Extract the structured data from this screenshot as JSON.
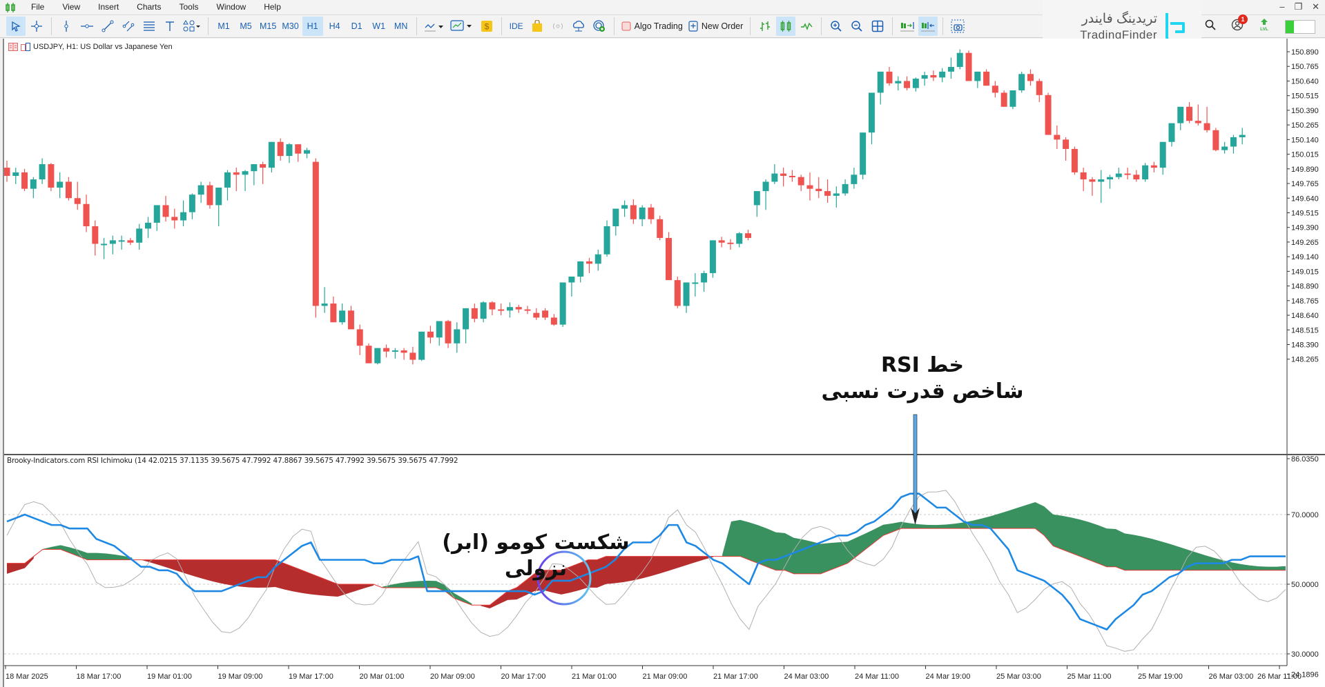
{
  "menu": {
    "items": [
      "File",
      "View",
      "Insert",
      "Charts",
      "Tools",
      "Window",
      "Help"
    ]
  },
  "toolbar": {
    "timeframes": [
      "M1",
      "M5",
      "M15",
      "M30",
      "H1",
      "H4",
      "D1",
      "W1",
      "MN"
    ],
    "active_timeframe": "H1",
    "ide_label": "IDE",
    "algo_trading_label": "Algo Trading",
    "new_order_label": "New Order",
    "notification_count": "1",
    "lvl_label": "LVL"
  },
  "logo": {
    "fa": "تریدینگ فایندر",
    "en": "TradingFinder"
  },
  "chart": {
    "symbol_label": "USDJPY, H1:  US Dollar vs Japanese Yen",
    "bull_color": "#26a69a",
    "bear_color": "#ef5350",
    "price_axis": [
      "150.890",
      "150.765",
      "150.640",
      "150.515",
      "150.390",
      "150.265",
      "150.140",
      "150.015",
      "149.890",
      "149.765",
      "149.640",
      "149.515",
      "149.390",
      "149.265",
      "149.140",
      "149.015",
      "148.890",
      "148.765",
      "148.640",
      "148.515",
      "148.390",
      "148.265"
    ],
    "time_axis": [
      "18 Mar 2025",
      "18 Mar 17:00",
      "19 Mar 01:00",
      "19 Mar 09:00",
      "19 Mar 17:00",
      "20 Mar 01:00",
      "20 Mar 09:00",
      "20 Mar 17:00",
      "21 Mar 01:00",
      "21 Mar 09:00",
      "21 Mar 17:00",
      "24 Mar 03:00",
      "24 Mar 11:00",
      "24 Mar 19:00",
      "25 Mar 03:00",
      "25 Mar 11:00",
      "25 Mar 19:00",
      "26 Mar 03:00",
      "26 Mar 11:00"
    ]
  },
  "indicator": {
    "label": "Brooky-Indicators.com RSI Ichimoku (14 42.0215 37.1135 39.5675 47.7992 47.8867 39.5675 47.7992 39.5675 39.5675 47.7992",
    "axis": {
      "max": "86.0350",
      "l70": "70.0000",
      "l50": "50.0000",
      "l30": "30.0000",
      "min": "24.1896"
    }
  },
  "annotations": {
    "rsi_line_title": "خط RSI",
    "rsi_line_subtitle": "شاخص قدرت نسبی",
    "kumo_break": "شکست کومو (ابر) نزولی"
  },
  "chart_data": {
    "type": "candlestick",
    "title": "USDJPY, H1: US Dollar vs Japanese Yen",
    "ylim": [
      148.19,
      150.98
    ],
    "candles_ohlc": [
      [
        149.9,
        149.96,
        149.78,
        149.83
      ],
      [
        149.83,
        149.9,
        149.76,
        149.86
      ],
      [
        149.86,
        149.89,
        149.7,
        149.72
      ],
      [
        149.72,
        149.82,
        149.64,
        149.8
      ],
      [
        149.8,
        149.98,
        149.76,
        149.93
      ],
      [
        149.93,
        149.94,
        149.7,
        149.73
      ],
      [
        149.73,
        149.86,
        149.64,
        149.78
      ],
      [
        149.78,
        149.82,
        149.62,
        149.64
      ],
      [
        149.64,
        149.78,
        149.54,
        149.59
      ],
      [
        149.59,
        149.67,
        149.35,
        149.4
      ],
      [
        149.4,
        149.45,
        149.15,
        149.25
      ],
      [
        149.25,
        149.3,
        149.12,
        149.25
      ],
      [
        149.25,
        149.32,
        149.16,
        149.28
      ],
      [
        149.28,
        149.32,
        149.2,
        149.28
      ],
      [
        149.28,
        149.3,
        149.24,
        149.26
      ],
      [
        149.26,
        149.42,
        149.2,
        149.38
      ],
      [
        149.38,
        149.48,
        149.3,
        149.43
      ],
      [
        149.43,
        149.52,
        149.36,
        149.58
      ],
      [
        149.58,
        149.66,
        149.44,
        149.48
      ],
      [
        149.48,
        149.55,
        149.38,
        149.45
      ],
      [
        149.45,
        149.62,
        149.4,
        149.52
      ],
      [
        149.52,
        149.68,
        149.46,
        149.67
      ],
      [
        149.67,
        149.78,
        149.6,
        149.75
      ],
      [
        149.75,
        149.78,
        149.55,
        149.58
      ],
      [
        149.58,
        149.71,
        149.4,
        149.73
      ],
      [
        149.73,
        149.88,
        149.62,
        149.86
      ],
      [
        149.86,
        149.9,
        149.7,
        149.84
      ],
      [
        149.84,
        149.88,
        149.7,
        149.87
      ],
      [
        149.87,
        149.9,
        149.75,
        149.93
      ],
      [
        149.93,
        149.95,
        149.76,
        149.9
      ],
      [
        149.9,
        150.12,
        149.86,
        150.12
      ],
      [
        150.12,
        150.15,
        149.96,
        150.0
      ],
      [
        150.0,
        150.11,
        149.94,
        150.1
      ],
      [
        150.1,
        150.1,
        149.95,
        150.02
      ],
      [
        150.02,
        150.07,
        149.98,
        150.05
      ],
      [
        149.95,
        149.98,
        148.62,
        148.72
      ],
      [
        148.72,
        148.88,
        148.66,
        148.74
      ],
      [
        148.74,
        148.8,
        148.58,
        148.58
      ],
      [
        148.58,
        148.74,
        148.56,
        148.68
      ],
      [
        148.68,
        148.72,
        148.52,
        148.52
      ],
      [
        148.52,
        148.56,
        148.3,
        148.38
      ],
      [
        148.38,
        148.4,
        148.24,
        148.23
      ],
      [
        148.23,
        148.36,
        148.22,
        148.36
      ],
      [
        148.36,
        148.39,
        148.28,
        148.33
      ],
      [
        148.33,
        148.36,
        148.27,
        148.34
      ],
      [
        148.34,
        148.36,
        148.26,
        148.32
      ],
      [
        148.32,
        148.37,
        148.22,
        148.26
      ],
      [
        148.26,
        148.5,
        148.25,
        148.5
      ],
      [
        148.5,
        148.55,
        148.4,
        148.45
      ],
      [
        148.45,
        148.59,
        148.38,
        148.59
      ],
      [
        148.59,
        148.6,
        148.36,
        148.4
      ],
      [
        148.4,
        148.58,
        148.32,
        148.52
      ],
      [
        148.52,
        148.7,
        148.4,
        148.7
      ],
      [
        148.7,
        148.74,
        148.58,
        148.61
      ],
      [
        148.61,
        148.76,
        148.58,
        148.75
      ],
      [
        148.75,
        148.76,
        148.64,
        148.69
      ],
      [
        148.69,
        148.74,
        148.64,
        148.68
      ],
      [
        148.68,
        148.75,
        148.62,
        148.71
      ],
      [
        148.71,
        148.73,
        148.66,
        148.69
      ],
      [
        148.69,
        148.72,
        148.65,
        148.68
      ],
      [
        148.66,
        148.7,
        148.6,
        148.62
      ],
      [
        148.68,
        148.7,
        148.6,
        148.62
      ],
      [
        148.62,
        148.65,
        148.55,
        148.56
      ],
      [
        148.56,
        148.92,
        148.54,
        148.92
      ],
      [
        148.92,
        148.97,
        148.8,
        148.97
      ],
      [
        148.97,
        149.1,
        148.92,
        149.1
      ],
      [
        149.1,
        149.13,
        149.0,
        149.08
      ],
      [
        149.08,
        149.2,
        149.02,
        149.16
      ],
      [
        149.16,
        149.45,
        149.14,
        149.4
      ],
      [
        149.4,
        149.52,
        149.32,
        149.55
      ],
      [
        149.55,
        149.62,
        149.48,
        149.58
      ],
      [
        149.58,
        149.63,
        149.42,
        149.46
      ],
      [
        149.46,
        149.58,
        149.4,
        149.56
      ],
      [
        149.56,
        149.59,
        149.42,
        149.46
      ],
      [
        149.46,
        149.49,
        149.28,
        149.3
      ],
      [
        149.3,
        149.35,
        148.94,
        148.94
      ],
      [
        148.94,
        148.97,
        148.7,
        148.72
      ],
      [
        148.72,
        148.92,
        148.66,
        148.92
      ],
      [
        148.92,
        149.0,
        148.8,
        148.92
      ],
      [
        148.92,
        149.02,
        148.84,
        149.0
      ],
      [
        149.0,
        149.28,
        148.96,
        149.28
      ],
      [
        149.28,
        149.31,
        149.22,
        149.26
      ],
      [
        149.26,
        149.29,
        149.2,
        149.25
      ],
      [
        149.25,
        149.35,
        149.22,
        149.34
      ],
      [
        149.34,
        149.37,
        149.28,
        149.3
      ],
      [
        149.58,
        149.62,
        149.48,
        149.7
      ],
      [
        149.7,
        149.8,
        149.54,
        149.78
      ],
      [
        149.78,
        149.93,
        149.76,
        149.85
      ],
      [
        149.85,
        149.9,
        149.74,
        149.83
      ],
      [
        149.83,
        149.88,
        149.78,
        149.82
      ],
      [
        149.82,
        149.84,
        149.7,
        149.75
      ],
      [
        149.75,
        149.86,
        149.62,
        149.72
      ],
      [
        149.72,
        149.82,
        149.64,
        149.7
      ],
      [
        149.7,
        149.8,
        149.6,
        149.66
      ],
      [
        149.66,
        149.74,
        149.56,
        149.68
      ],
      [
        149.68,
        149.8,
        149.66,
        149.76
      ],
      [
        149.76,
        149.9,
        149.72,
        149.84
      ],
      [
        149.84,
        150.2,
        149.8,
        150.2
      ],
      [
        150.2,
        150.38,
        150.1,
        150.54
      ],
      [
        150.54,
        150.64,
        150.44,
        150.72
      ],
      [
        150.72,
        150.76,
        150.6,
        150.62
      ],
      [
        150.62,
        150.68,
        150.56,
        150.64
      ],
      [
        150.64,
        150.68,
        150.56,
        150.58
      ],
      [
        150.58,
        150.67,
        150.55,
        150.66
      ],
      [
        150.66,
        150.72,
        150.6,
        150.69
      ],
      [
        150.69,
        150.73,
        150.64,
        150.67
      ],
      [
        150.67,
        150.75,
        150.63,
        150.72
      ],
      [
        150.72,
        150.84,
        150.66,
        150.76
      ],
      [
        150.76,
        150.91,
        150.74,
        150.88
      ],
      [
        150.88,
        150.9,
        150.64,
        150.64
      ],
      [
        150.64,
        150.72,
        150.58,
        150.72
      ],
      [
        150.72,
        150.74,
        150.6,
        150.6
      ],
      [
        150.6,
        150.64,
        150.5,
        150.54
      ],
      [
        150.54,
        150.56,
        150.42,
        150.42
      ],
      [
        150.42,
        150.56,
        150.4,
        150.56
      ],
      [
        150.56,
        150.72,
        150.54,
        150.7
      ],
      [
        150.7,
        150.74,
        150.6,
        150.64
      ],
      [
        150.64,
        150.66,
        150.46,
        150.52
      ],
      [
        150.52,
        150.54,
        150.18,
        150.18
      ],
      [
        150.18,
        150.26,
        150.06,
        150.14
      ],
      [
        150.14,
        150.16,
        149.96,
        150.06
      ],
      [
        150.06,
        150.08,
        149.84,
        149.86
      ],
      [
        149.86,
        149.9,
        149.7,
        149.8
      ],
      [
        149.8,
        149.82,
        149.66,
        149.78
      ],
      [
        149.78,
        149.88,
        149.6,
        149.8
      ],
      [
        149.8,
        149.84,
        149.72,
        149.82
      ],
      [
        149.82,
        149.9,
        149.8,
        149.85
      ],
      [
        149.85,
        149.9,
        149.8,
        149.84
      ],
      [
        149.84,
        149.88,
        149.78,
        149.8
      ],
      [
        149.8,
        149.94,
        149.78,
        149.92
      ],
      [
        149.92,
        149.95,
        149.86,
        149.9
      ],
      [
        149.9,
        150.12,
        149.84,
        150.12
      ],
      [
        150.12,
        150.25,
        150.08,
        150.28
      ],
      [
        150.28,
        150.36,
        150.22,
        150.42
      ],
      [
        150.42,
        150.46,
        150.28,
        150.3
      ],
      [
        150.3,
        150.44,
        150.26,
        150.28
      ],
      [
        150.28,
        150.42,
        150.2,
        150.22
      ],
      [
        150.22,
        150.24,
        150.04,
        150.05
      ],
      [
        150.05,
        150.12,
        150.02,
        150.08
      ],
      [
        150.08,
        150.18,
        150.02,
        150.16
      ],
      [
        150.16,
        150.24,
        150.1,
        150.18
      ]
    ],
    "rsi": {
      "ylim": [
        24.1896,
        86.035
      ],
      "levels": [
        70,
        50,
        30
      ],
      "rsi_line_color": "#1e88e5",
      "signal_red_color": "#e53935",
      "lagging_color": "#b0b0b0",
      "kumo_bull_color": "#2e8b57",
      "kumo_bear_color": "#b22222",
      "rsi_values": [
        68,
        69,
        70,
        69,
        68,
        67,
        67,
        66,
        66,
        66,
        63,
        62,
        61,
        59,
        57,
        55,
        55,
        54,
        54,
        53,
        50,
        48,
        48,
        48,
        48,
        49,
        50,
        51,
        52,
        52,
        55,
        57,
        59,
        61,
        62,
        57,
        57,
        57,
        57,
        57,
        57,
        56,
        56,
        57,
        57,
        57,
        58,
        48,
        48,
        48,
        48,
        48,
        48,
        48,
        48,
        48,
        48,
        48,
        48,
        47,
        48,
        51,
        51,
        51,
        52,
        53,
        54,
        55,
        57,
        60,
        62,
        62,
        62,
        64,
        67,
        67,
        62,
        61,
        59,
        57,
        56,
        54,
        52,
        50,
        56,
        57,
        57,
        58,
        59,
        60,
        61,
        62,
        63,
        64,
        64,
        65,
        67,
        68,
        70,
        72,
        75,
        76,
        76,
        74,
        72,
        72,
        70,
        68,
        67,
        67,
        66,
        63,
        60,
        54,
        53,
        52,
        51,
        49,
        47,
        44,
        40,
        39,
        38,
        37,
        40,
        42,
        44,
        47,
        48,
        50,
        52,
        53,
        55,
        56,
        56,
        56,
        56,
        57,
        57,
        58,
        58,
        58,
        58,
        58
      ],
      "signal_values": [
        56,
        56,
        56,
        58,
        60,
        60,
        60,
        59,
        58,
        57,
        57,
        57,
        57,
        57,
        57,
        57,
        57,
        57,
        57,
        57,
        57,
        57,
        57,
        57,
        57,
        57,
        57,
        57,
        57,
        57,
        57,
        56,
        55,
        54,
        53,
        52,
        51,
        50,
        50,
        50,
        50,
        50,
        49,
        49,
        49,
        49,
        49,
        49,
        49,
        48,
        46,
        45,
        44,
        44,
        44,
        46,
        48,
        49,
        51,
        53,
        54,
        54,
        54,
        55,
        56,
        57,
        57,
        58,
        58,
        58,
        58,
        58,
        58,
        58,
        58,
        58,
        58,
        58,
        58,
        58,
        58,
        58,
        58,
        57,
        56,
        55,
        54,
        54,
        53,
        53,
        53,
        53,
        54,
        55,
        56,
        58,
        60,
        62,
        64,
        65,
        66,
        66,
        66,
        66,
        66,
        66,
        66,
        66,
        66,
        66,
        66,
        66,
        66,
        66,
        66,
        66,
        64,
        61,
        60,
        59,
        58,
        57,
        56,
        55,
        55,
        54,
        54,
        54,
        54,
        54,
        54,
        54,
        54,
        54,
        54,
        54,
        54,
        54,
        54,
        54,
        54,
        54,
        54,
        54
      ]
    }
  }
}
